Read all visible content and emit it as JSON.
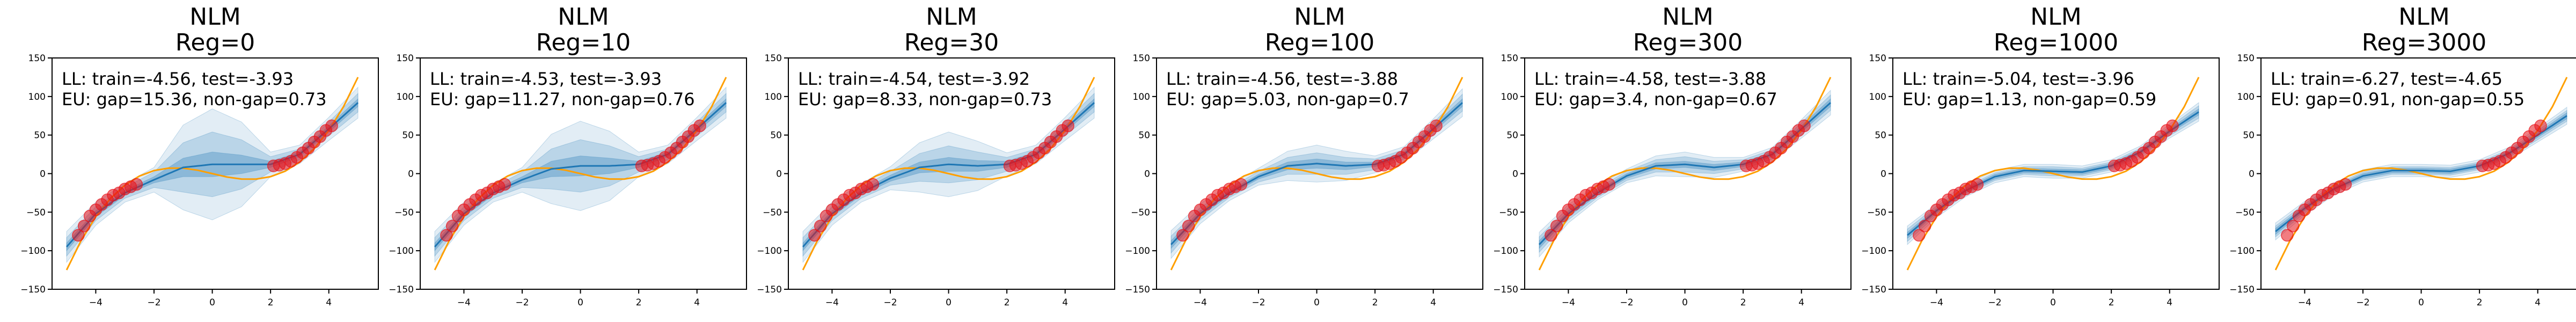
{
  "chart_data": [
    {
      "type": "line",
      "title_line1": "NLM",
      "title_line2": "Reg=0",
      "annotation_line1": "LL: train=-4.56, test=-3.93",
      "annotation_line2": "EU: gap=15.36, non-gap=0.73",
      "xlim": [
        -5.5,
        5.7
      ],
      "ylim": [
        -150,
        150
      ],
      "xticks": [
        -4,
        -2,
        0,
        2,
        4
      ],
      "yticks": [
        -150,
        -100,
        -50,
        0,
        50,
        100,
        150
      ],
      "mean": {
        "x": [
          -5,
          -4,
          -3,
          -2,
          -1,
          0,
          1,
          2,
          3,
          4,
          5
        ],
        "y": [
          -95,
          -52,
          -25,
          -8,
          8,
          12,
          12,
          12,
          25,
          58,
          92
        ]
      },
      "band_halfwidths": {
        "x": [
          -5,
          -4,
          -3,
          -2,
          -1,
          0,
          1,
          2,
          3,
          4,
          5
        ],
        "inner": [
          5,
          4,
          3,
          4,
          12,
          16,
          12,
          4,
          3,
          4,
          5
        ],
        "middle": [
          12,
          9,
          7,
          10,
          32,
          42,
          32,
          10,
          7,
          9,
          12
        ],
        "outer": [
          20,
          15,
          12,
          16,
          55,
          72,
          55,
          16,
          12,
          15,
          20
        ]
      }
    },
    {
      "type": "line",
      "title_line1": "NLM",
      "title_line2": "Reg=10",
      "annotation_line1": "LL: train=-4.53, test=-3.93",
      "annotation_line2": "EU: gap=11.27, non-gap=0.76",
      "xlim": [
        -5.5,
        5.7
      ],
      "ylim": [
        -150,
        150
      ],
      "xticks": [
        -4,
        -2,
        0,
        2,
        4
      ],
      "yticks": [
        -150,
        -100,
        -50,
        0,
        50,
        100,
        150
      ],
      "mean": {
        "x": [
          -5,
          -4,
          -3,
          -2,
          -1,
          0,
          1,
          2,
          3,
          4,
          5
        ],
        "y": [
          -95,
          -52,
          -25,
          -8,
          6,
          10,
          10,
          12,
          25,
          58,
          92
        ]
      },
      "band_halfwidths": {
        "x": [
          -5,
          -4,
          -3,
          -2,
          -1,
          0,
          1,
          2,
          3,
          4,
          5
        ],
        "inner": [
          5,
          4,
          3,
          4,
          10,
          13,
          10,
          4,
          3,
          4,
          5
        ],
        "middle": [
          12,
          9,
          7,
          10,
          26,
          34,
          26,
          10,
          7,
          9,
          12
        ],
        "outer": [
          20,
          15,
          12,
          16,
          45,
          58,
          45,
          16,
          12,
          15,
          20
        ]
      }
    },
    {
      "type": "line",
      "title_line1": "NLM",
      "title_line2": "Reg=30",
      "annotation_line1": "LL: train=-4.54, test=-3.92",
      "annotation_line2": "EU: gap=8.33, non-gap=0.73",
      "xlim": [
        -5.5,
        5.7
      ],
      "ylim": [
        -150,
        150
      ],
      "xticks": [
        -4,
        -2,
        0,
        2,
        4
      ],
      "yticks": [
        -150,
        -100,
        -50,
        0,
        50,
        100,
        150
      ],
      "mean": {
        "x": [
          -5,
          -4,
          -3,
          -2,
          -1,
          0,
          1,
          2,
          3,
          4,
          5
        ],
        "y": [
          -95,
          -52,
          -25,
          -6,
          8,
          12,
          10,
          12,
          25,
          58,
          92
        ]
      },
      "band_halfwidths": {
        "x": [
          -5,
          -4,
          -3,
          -2,
          -1,
          0,
          1,
          2,
          3,
          4,
          5
        ],
        "inner": [
          5,
          4,
          3,
          4,
          7,
          9,
          7,
          4,
          3,
          4,
          5
        ],
        "middle": [
          12,
          9,
          7,
          9,
          18,
          24,
          18,
          9,
          7,
          9,
          12
        ],
        "outer": [
          20,
          15,
          12,
          15,
          32,
          42,
          32,
          15,
          12,
          15,
          20
        ]
      }
    },
    {
      "type": "line",
      "title_line1": "NLM",
      "title_line2": "Reg=100",
      "annotation_line1": "LL: train=-4.56, test=-3.88",
      "annotation_line2": "EU: gap=5.03, non-gap=0.7",
      "xlim": [
        -5.5,
        5.7
      ],
      "ylim": [
        -150,
        150
      ],
      "xticks": [
        -4,
        -2,
        0,
        2,
        4
      ],
      "yticks": [
        -150,
        -100,
        -50,
        0,
        50,
        100,
        150
      ],
      "mean": {
        "x": [
          -5,
          -4,
          -3,
          -2,
          -1,
          0,
          1,
          2,
          3,
          4,
          5
        ],
        "y": [
          -92,
          -52,
          -25,
          -4,
          10,
          13,
          10,
          12,
          25,
          58,
          92
        ]
      },
      "band_halfwidths": {
        "x": [
          -5,
          -4,
          -3,
          -2,
          -1,
          0,
          1,
          2,
          3,
          4,
          5
        ],
        "inner": [
          5,
          4,
          3,
          3,
          5,
          6,
          5,
          3,
          3,
          4,
          5
        ],
        "middle": [
          11,
          8,
          6,
          7,
          11,
          14,
          11,
          7,
          6,
          8,
          11
        ],
        "outer": [
          18,
          13,
          10,
          11,
          19,
          24,
          19,
          11,
          10,
          13,
          18
        ]
      }
    },
    {
      "type": "line",
      "title_line1": "NLM",
      "title_line2": "Reg=300",
      "annotation_line1": "LL: train=-4.58, test=-3.88",
      "annotation_line2": "EU: gap=3.4, non-gap=0.67",
      "xlim": [
        -5.5,
        5.7
      ],
      "ylim": [
        -150,
        150
      ],
      "xticks": [
        -4,
        -2,
        0,
        2,
        4
      ],
      "yticks": [
        -150,
        -100,
        -50,
        0,
        50,
        100,
        150
      ],
      "mean": {
        "x": [
          -5,
          -4,
          -3,
          -2,
          -1,
          0,
          1,
          2,
          3,
          4,
          5
        ],
        "y": [
          -92,
          -52,
          -25,
          -3,
          10,
          12,
          8,
          12,
          25,
          58,
          92
        ]
      },
      "band_halfwidths": {
        "x": [
          -5,
          -4,
          -3,
          -2,
          -1,
          0,
          1,
          2,
          3,
          4,
          5
        ],
        "inner": [
          5,
          4,
          3,
          3,
          4,
          4,
          4,
          3,
          3,
          4,
          5
        ],
        "middle": [
          10,
          8,
          6,
          6,
          8,
          10,
          8,
          6,
          6,
          8,
          10
        ],
        "outer": [
          16,
          12,
          9,
          9,
          13,
          16,
          13,
          9,
          9,
          12,
          16
        ]
      }
    },
    {
      "type": "line",
      "title_line1": "NLM",
      "title_line2": "Reg=1000",
      "annotation_line1": "LL: train=-5.04, test=-3.96",
      "annotation_line2": "EU: gap=1.13, non-gap=0.59",
      "xlim": [
        -5.5,
        5.7
      ],
      "ylim": [
        -150,
        150
      ],
      "xticks": [
        -4,
        -2,
        0,
        2,
        4
      ],
      "yticks": [
        -150,
        -100,
        -50,
        0,
        50,
        100,
        150
      ],
      "mean": {
        "x": [
          -5,
          -4,
          -3,
          -2,
          -1,
          0,
          1,
          2,
          3,
          4,
          5
        ],
        "y": [
          -80,
          -48,
          -22,
          -4,
          4,
          3,
          2,
          10,
          28,
          55,
          80
        ]
      },
      "band_halfwidths": {
        "x": [
          -5,
          -4,
          -3,
          -2,
          -1,
          0,
          1,
          2,
          3,
          4,
          5
        ],
        "inner": [
          4,
          3,
          3,
          3,
          3,
          3,
          3,
          3,
          3,
          3,
          4
        ],
        "middle": [
          8,
          6,
          5,
          5,
          5,
          6,
          5,
          5,
          5,
          6,
          8
        ],
        "outer": [
          12,
          9,
          8,
          8,
          8,
          9,
          8,
          8,
          8,
          9,
          12
        ]
      }
    },
    {
      "type": "line",
      "title_line1": "NLM",
      "title_line2": "Reg=3000",
      "annotation_line1": "LL: train=-6.27, test=-4.65",
      "annotation_line2": "EU: gap=0.91, non-gap=0.55",
      "xlim": [
        -5.5,
        5.7
      ],
      "ylim": [
        -150,
        150
      ],
      "xticks": [
        -4,
        -2,
        0,
        2,
        4
      ],
      "yticks": [
        -150,
        -100,
        -50,
        0,
        50,
        100,
        150
      ],
      "mean": {
        "x": [
          -5,
          -4,
          -3,
          -2,
          -1,
          0,
          1,
          2,
          3,
          4,
          5
        ],
        "y": [
          -75,
          -45,
          -20,
          -3,
          4,
          4,
          3,
          10,
          26,
          50,
          75
        ]
      },
      "band_halfwidths": {
        "x": [
          -5,
          -4,
          -3,
          -2,
          -1,
          0,
          1,
          2,
          3,
          4,
          5
        ],
        "inner": [
          4,
          3,
          3,
          3,
          3,
          3,
          3,
          3,
          3,
          3,
          4
        ],
        "middle": [
          7,
          6,
          5,
          5,
          5,
          5,
          5,
          5,
          5,
          6,
          7
        ],
        "outer": [
          11,
          9,
          8,
          8,
          8,
          8,
          8,
          8,
          8,
          9,
          11
        ]
      }
    }
  ],
  "shared": {
    "true_function": {
      "x": [
        -5,
        -4.5,
        -4,
        -3.5,
        -3,
        -2.5,
        -2,
        -1.5,
        -1,
        -0.5,
        0,
        0.5,
        1,
        1.5,
        2,
        2.5,
        3,
        3.5,
        4,
        4.5,
        5
      ],
      "y": [
        -125,
        -86.6,
        -56,
        -32.4,
        -15,
        -3.1,
        4,
        7.1,
        7,
        4.4,
        0,
        -4.4,
        -7,
        -7.1,
        -4,
        3.1,
        15,
        32.4,
        56,
        86.6,
        125
      ]
    },
    "training_points": {
      "x": [
        -4.6,
        -4.4,
        -4.2,
        -4.0,
        -3.8,
        -3.6,
        -3.4,
        -3.2,
        -3.0,
        -2.8,
        -2.6,
        2.1,
        2.3,
        2.5,
        2.7,
        2.9,
        3.1,
        3.3,
        3.5,
        3.7,
        3.9,
        4.1
      ],
      "y": [
        -80,
        -68,
        -55,
        -47,
        -40,
        -34,
        -28,
        -25,
        -20,
        -17,
        -14,
        10,
        11,
        13,
        16,
        21,
        27,
        33,
        41,
        48,
        56,
        62
      ]
    },
    "colors": {
      "mean": "#1f77b4",
      "band": "#1f77b4",
      "truth": "#ff9f00",
      "points": "#e8121a",
      "axes": "#000000"
    }
  }
}
